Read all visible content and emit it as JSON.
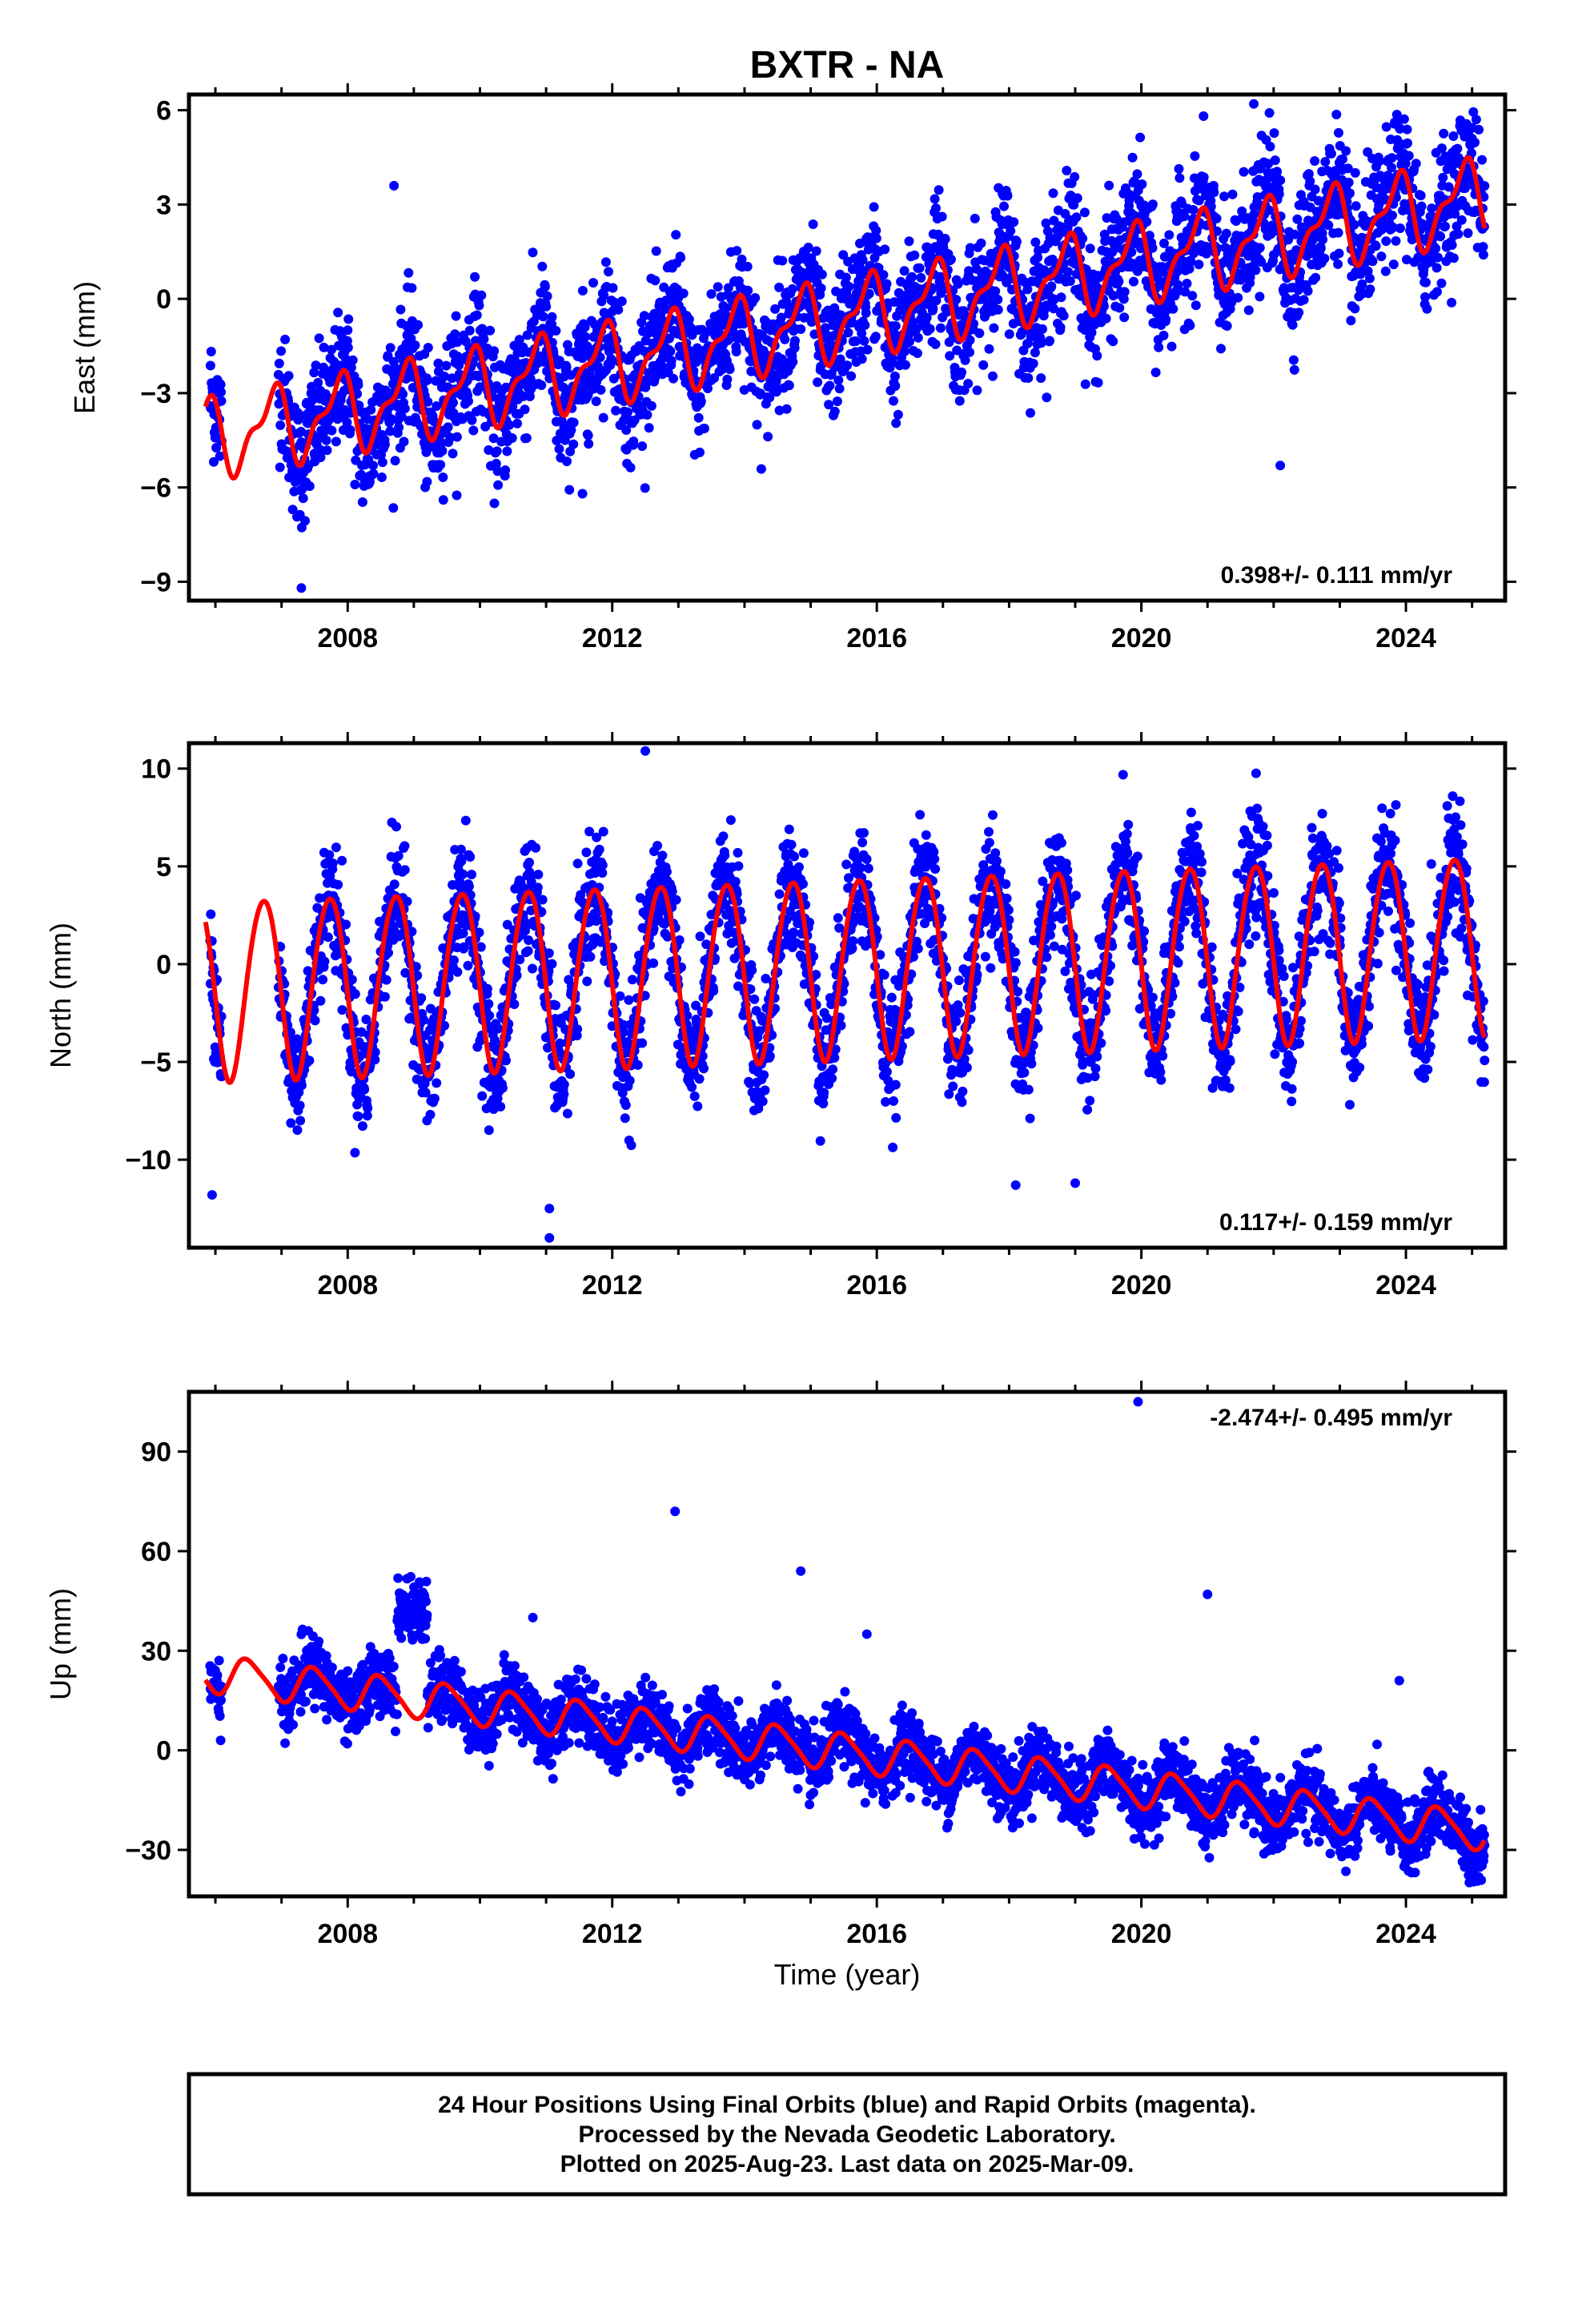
{
  "title": "BXTR - NA",
  "colors": {
    "data_points": "#0000ff",
    "model_line": "#ff0000",
    "frame": "#000000",
    "background": "#ffffff"
  },
  "chart_data": [
    {
      "type": "scatter",
      "name": "east",
      "ylabel": "East (mm)",
      "xlabel": "",
      "xlim": [
        2005.6,
        2025.5
      ],
      "ylim": [
        -9.6,
        6.5
      ],
      "yticks": [
        -9,
        -6,
        -3,
        0,
        3,
        6
      ],
      "xticks": [
        2008,
        2012,
        2016,
        2020,
        2024
      ],
      "rate_label": "0.398+/- 0.111 mm/yr",
      "rate_position": "bottom-right",
      "model": {
        "offset_2006": -4.4,
        "rate_mm_per_yr": 0.398,
        "annual_amplitude": 1.1,
        "annual_phase": 2.5,
        "semiannual_amplitude": 0.5,
        "scatter_sigma": 1.0
      },
      "x_start": 2005.85,
      "x_end": 2025.19,
      "data_start": 2005.92,
      "data_end": 2025.19,
      "gaps": [
        [
          2006.1,
          2006.95
        ]
      ],
      "outliers": [
        {
          "x": 2008.7,
          "y": 3.6
        },
        {
          "x": 2021.7,
          "y": 6.2
        },
        {
          "x": 2022.1,
          "y": -5.3
        },
        {
          "x": 2011.55,
          "y": -6.2
        },
        {
          "x": 2007.3,
          "y": -9.2
        }
      ]
    },
    {
      "type": "scatter",
      "name": "north",
      "ylabel": "North (mm)",
      "xlabel": "",
      "xlim": [
        2005.6,
        2025.5
      ],
      "ylim": [
        -14.5,
        11.3
      ],
      "yticks": [
        -10,
        -5,
        0,
        5,
        10
      ],
      "xticks": [
        2008,
        2012,
        2016,
        2020,
        2024
      ],
      "rate_label": "0.117+/- 0.159 mm/yr",
      "rate_position": "bottom-right",
      "model": {
        "offset_2006": -1.2,
        "rate_mm_per_yr": 0.117,
        "annual_amplitude": 4.6,
        "annual_phase": 3.3,
        "semiannual_amplitude": 0.3,
        "scatter_sigma": 1.5
      },
      "x_start": 2005.85,
      "x_end": 2025.19,
      "data_start": 2005.92,
      "data_end": 2025.19,
      "gaps": [
        [
          2006.1,
          2006.95
        ]
      ],
      "outliers": [
        {
          "x": 2012.5,
          "y": 10.9
        },
        {
          "x": 2011.05,
          "y": -14.0
        },
        {
          "x": 2011.05,
          "y": -12.5
        },
        {
          "x": 2005.95,
          "y": -11.8
        },
        {
          "x": 2018.1,
          "y": -11.3
        },
        {
          "x": 2019.0,
          "y": -11.2
        }
      ]
    },
    {
      "type": "scatter",
      "name": "up",
      "ylabel": "Up (mm)",
      "xlabel": "Time (year)",
      "xlim": [
        2005.6,
        2025.5
      ],
      "ylim": [
        -44,
        108
      ],
      "yticks": [
        -30,
        0,
        30,
        60,
        90
      ],
      "xticks": [
        2008,
        2012,
        2016,
        2020,
        2024
      ],
      "rate_label": "-2.474+/- 0.495 mm/yr",
      "rate_position": "top-right",
      "model": {
        "offset_2006": 23,
        "rate_mm_per_yr": -2.474,
        "annual_amplitude": 5.5,
        "annual_phase": 4.7,
        "semiannual_amplitude": 1.0,
        "scatter_sigma": 5.0
      },
      "x_start": 2005.85,
      "x_end": 2025.19,
      "data_start": 2005.92,
      "data_end": 2025.19,
      "gaps": [
        [
          2006.1,
          2006.95
        ]
      ],
      "anomaly": {
        "from": 2008.75,
        "to": 2009.2,
        "y": 42,
        "spread": 8
      },
      "outliers": [
        {
          "x": 2019.95,
          "y": 105
        },
        {
          "x": 2012.95,
          "y": 72
        },
        {
          "x": 2014.85,
          "y": 54
        },
        {
          "x": 2021.0,
          "y": 47
        },
        {
          "x": 2010.8,
          "y": 40
        },
        {
          "x": 2015.85,
          "y": 35
        },
        {
          "x": 2023.9,
          "y": 21
        }
      ]
    }
  ],
  "footer": {
    "line1": "24 Hour Positions Using Final Orbits (blue) and Rapid Orbits (magenta).",
    "line2": "Processed by the Nevada Geodetic Laboratory.",
    "line3": "Plotted on 2025-Aug-23. Last data on 2025-Mar-09."
  }
}
